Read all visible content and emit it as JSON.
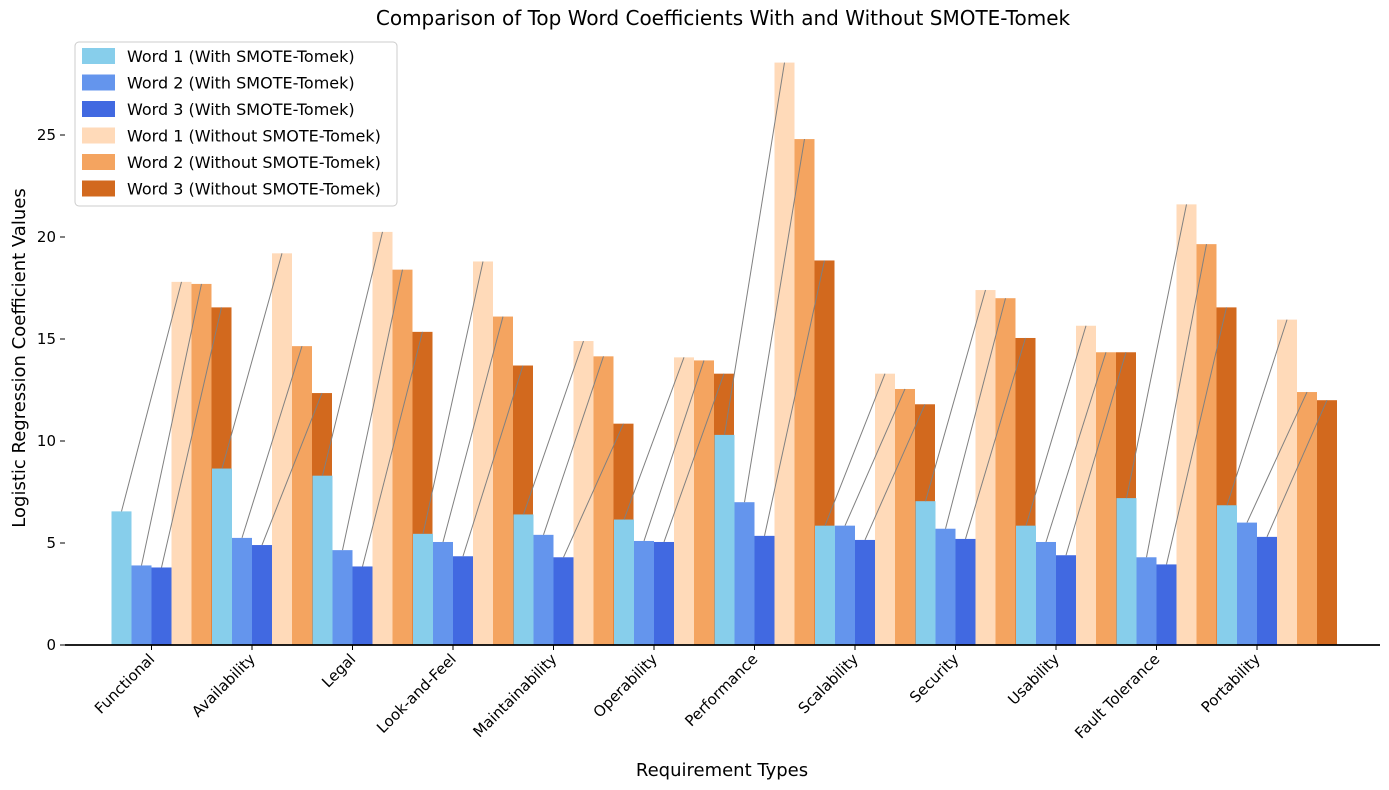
{
  "chart_data": {
    "type": "bar",
    "title": "Comparison of Top Word Coefficients With and Without SMOTE-Tomek",
    "xlabel": "Requirement Types",
    "ylabel": "Logistic Regression Coefficient Values",
    "ylim": [
      0,
      30
    ],
    "yticks": [
      "0",
      "5",
      "10",
      "15",
      "20",
      "25"
    ],
    "legend_position": "top-left",
    "categories": [
      "Functional",
      "Availability",
      "Legal",
      "Look-and-Feel",
      "Maintainability",
      "Operability",
      "Performance",
      "Scalability",
      "Security",
      "Usability",
      "Fault Tolerance",
      "Portability"
    ],
    "series": [
      {
        "name": "Word 1 (With SMOTE-Tomek)",
        "color": "#87CEEB",
        "values": [
          6.55,
          8.65,
          8.3,
          5.45,
          6.4,
          6.15,
          10.3,
          5.85,
          7.05,
          5.85,
          7.2,
          6.85
        ]
      },
      {
        "name": "Word 2 (With SMOTE-Tomek)",
        "color": "#6495ED",
        "values": [
          3.9,
          5.25,
          4.65,
          5.05,
          5.4,
          5.1,
          7.0,
          5.85,
          5.7,
          5.05,
          4.3,
          6.0
        ]
      },
      {
        "name": "Word 3 (With SMOTE-Tomek)",
        "color": "#4169E1",
        "values": [
          3.8,
          4.9,
          3.85,
          4.35,
          4.3,
          5.05,
          5.35,
          5.15,
          5.2,
          4.4,
          3.95,
          5.3
        ]
      },
      {
        "name": "Word 1 (Without SMOTE-Tomek)",
        "color": "#FFDAB9",
        "values": [
          17.8,
          19.2,
          20.25,
          18.8,
          14.9,
          14.1,
          28.55,
          13.3,
          17.4,
          15.65,
          21.6,
          15.95
        ]
      },
      {
        "name": "Word 2 (Without SMOTE-Tomek)",
        "color": "#F4A460",
        "values": [
          17.7,
          14.65,
          18.4,
          16.1,
          14.15,
          13.95,
          24.8,
          12.55,
          17.0,
          14.35,
          19.65,
          12.4
        ]
      },
      {
        "name": "Word 3 (Without SMOTE-Tomek)",
        "color": "#D2691E",
        "values": [
          16.55,
          12.35,
          15.35,
          13.7,
          10.85,
          13.3,
          18.85,
          11.8,
          15.05,
          14.35,
          16.55,
          12.0
        ]
      }
    ],
    "connector_color": "#808080"
  }
}
